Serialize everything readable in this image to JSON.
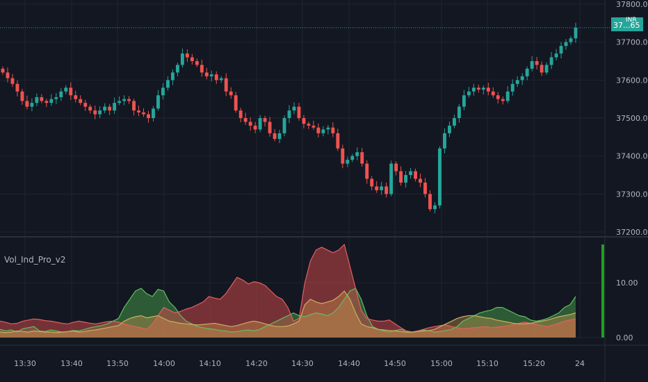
{
  "indicator": {
    "title": "Vol_Ind_Pro_v2"
  },
  "price_label": {
    "text": "37...65",
    "currency": "INR"
  },
  "colors": {
    "background": "#131722",
    "grid": "#1f2430",
    "up": "#26a69a",
    "down": "#ef5350",
    "axis_text": "#b2b5be",
    "green_area": "#4caf50",
    "red_area": "#d94c4c",
    "orange_line": "#e0a050",
    "bar": "#1fa01f"
  },
  "chart_data": [
    {
      "type": "candlestick",
      "title": "",
      "ylim": [
        37200,
        37800
      ],
      "y_ticks": [
        "37200.00",
        "37300.00",
        "37400.00",
        "37500.00",
        "37600.00",
        "37700.00",
        "37800.00"
      ],
      "x_ticks": [
        "13:30",
        "13:40",
        "13:50",
        "14:00",
        "14:10",
        "14:20",
        "14:30",
        "14:40",
        "14:50",
        "15:00",
        "15:10",
        "15:20",
        "24"
      ],
      "last_price_line": 37738,
      "close": [
        37620,
        37605,
        37590,
        37570,
        37545,
        37530,
        37540,
        37555,
        37545,
        37540,
        37550,
        37555,
        37570,
        37580,
        37560,
        37550,
        37540,
        37530,
        37520,
        37510,
        37520,
        37530,
        37520,
        37540,
        37545,
        37550,
        37545,
        37520,
        37515,
        37510,
        37500,
        37525,
        37560,
        37580,
        37600,
        37620,
        37640,
        37670,
        37660,
        37650,
        37640,
        37620,
        37610,
        37615,
        37600,
        37605,
        37570,
        37560,
        37520,
        37500,
        37490,
        37480,
        37470,
        37500,
        37490,
        37460,
        37445,
        37460,
        37500,
        37520,
        37530,
        37500,
        37485,
        37480,
        37475,
        37460,
        37470,
        37475,
        37460,
        37420,
        37380,
        37390,
        37400,
        37410,
        37380,
        37340,
        37320,
        37310,
        37320,
        37300,
        37380,
        37360,
        37330,
        37350,
        37360,
        37340,
        37330,
        37300,
        37260,
        37270,
        37420,
        37460,
        37480,
        37500,
        37530,
        37560,
        37570,
        37580,
        37575,
        37580,
        37570,
        37560,
        37550,
        37545,
        37570,
        37590,
        37600,
        37610,
        37630,
        37650,
        37640,
        37620,
        37640,
        37660,
        37670,
        37690,
        37700,
        37710,
        37738
      ],
      "low_hint": 37255,
      "high_hint": 37755
    },
    {
      "type": "area",
      "title": "Vol_Ind_Pro_v2",
      "ylim": [
        0,
        17
      ],
      "y_ticks": [
        "0.00",
        "10.00"
      ],
      "series": [
        {
          "values": [
            1.5,
            1.2,
            1.4,
            1.0,
            1.6,
            1.8,
            2.0,
            1.2,
            1.1,
            1.4,
            1.2,
            1.0,
            1.1,
            1.3,
            1.2,
            1.5,
            1.8,
            2.0,
            2.2,
            2.5,
            3.0,
            3.5,
            5.5,
            7.0,
            8.5,
            9.0,
            8.0,
            7.5,
            8.8,
            8.5,
            6.5,
            5.5,
            4.0,
            3.0,
            2.5,
            2.0,
            1.8,
            1.6,
            1.5,
            1.3,
            1.2,
            1.0,
            1.1,
            1.3,
            1.4,
            1.2,
            1.5,
            2.0,
            2.5,
            3.0,
            3.5,
            4.0,
            4.5,
            4.0,
            3.8,
            4.2,
            4.5,
            4.3,
            4.0,
            4.5,
            5.5,
            7.0,
            8.5,
            9.0,
            7.0,
            4.0,
            2.0,
            1.5,
            1.2,
            1.0,
            1.3,
            1.5,
            1.2,
            1.0,
            1.2,
            1.4,
            1.2,
            1.0,
            1.1,
            1.3,
            1.5,
            2.0,
            3.0,
            3.5,
            4.0,
            4.5,
            4.8,
            5.0,
            5.5,
            5.5,
            5.0,
            4.5,
            4.0,
            3.8,
            3.2,
            3.0,
            3.2,
            3.5,
            4.0,
            4.5,
            5.5,
            6.0,
            7.5
          ]
        },
        {
          "values": [
            3.0,
            2.8,
            2.5,
            2.6,
            3.0,
            3.2,
            3.4,
            3.3,
            3.1,
            3.0,
            2.8,
            2.6,
            2.5,
            2.8,
            3.0,
            2.8,
            2.6,
            2.5,
            2.7,
            2.9,
            3.0,
            2.8,
            2.5,
            2.2,
            2.0,
            1.8,
            1.5,
            2.5,
            4.0,
            5.5,
            5.0,
            4.5,
            4.8,
            5.2,
            5.5,
            6.0,
            6.5,
            7.5,
            7.2,
            7.0,
            8.0,
            9.5,
            11.0,
            10.5,
            9.8,
            10.2,
            10.0,
            9.5,
            8.5,
            7.5,
            7.0,
            5.5,
            3.0,
            3.5,
            10.0,
            14.0,
            16.0,
            16.5,
            16.0,
            15.5,
            16.0,
            17.0,
            13.0,
            9.0,
            5.0,
            3.5,
            3.2,
            3.0,
            3.0,
            3.2,
            2.5,
            1.8,
            1.2,
            1.0,
            1.2,
            1.5,
            1.8,
            2.0,
            2.2,
            2.3,
            2.0,
            1.8,
            1.6,
            1.7,
            1.8,
            1.9,
            2.0,
            1.8,
            1.9,
            2.0,
            2.2,
            2.4,
            2.6,
            2.8,
            2.6,
            2.4,
            2.2,
            2.0,
            2.3,
            2.6,
            3.0,
            3.2,
            3.4
          ]
        },
        {
          "values": [
            1.0,
            0.9,
            1.0,
            1.2,
            1.1,
            1.0,
            1.2,
            1.1,
            1.0,
            1.0,
            0.9,
            1.0,
            1.1,
            1.2,
            1.0,
            1.1,
            1.3,
            1.4,
            1.6,
            1.8,
            2.0,
            2.2,
            3.0,
            3.5,
            3.8,
            4.0,
            3.6,
            3.8,
            4.0,
            3.5,
            3.0,
            2.8,
            2.6,
            2.5,
            2.4,
            2.3,
            2.4,
            2.5,
            2.6,
            2.4,
            2.2,
            2.0,
            2.2,
            2.5,
            2.8,
            3.0,
            2.8,
            2.5,
            2.2,
            2.0,
            2.0,
            2.1,
            2.5,
            3.0,
            6.0,
            7.0,
            6.5,
            6.2,
            6.5,
            6.8,
            7.5,
            8.5,
            7.0,
            4.5,
            2.5,
            2.0,
            1.8,
            1.5,
            1.4,
            1.3,
            1.2,
            1.1,
            1.0,
            1.0,
            1.1,
            1.2,
            1.3,
            1.5,
            2.0,
            2.5,
            3.0,
            3.5,
            3.8,
            4.0,
            4.0,
            3.8,
            3.6,
            3.5,
            3.2,
            3.0,
            2.8,
            2.6,
            2.5,
            2.5,
            2.6,
            2.8,
            3.0,
            3.2,
            3.5,
            3.8,
            4.0,
            4.2,
            4.5
          ]
        }
      ],
      "last_bar_value": 17
    }
  ]
}
